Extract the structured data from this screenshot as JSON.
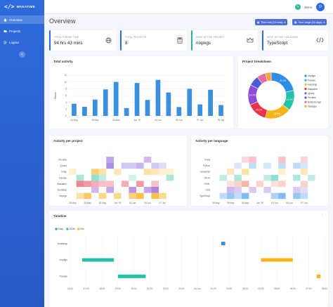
{
  "app": {
    "name": "WAKATIME",
    "logo_glyph": "</>"
  },
  "sidebar": {
    "items": [
      {
        "label": "Overview",
        "icon": "home-icon",
        "active": true
      },
      {
        "label": "Projects",
        "icon": "folder-icon",
        "active": false
      },
      {
        "label": "Logout",
        "icon": "logout-icon",
        "active": false
      }
    ],
    "collapse_glyph": "‹"
  },
  "topbar": {
    "username": "demo",
    "avatar_initial": "D",
    "edit_icon": "pencil-icon"
  },
  "page": {
    "title": "Overview"
  },
  "filters": {
    "time_limit": "Time limit (15 mins)",
    "time_range": "Time range (15 days)"
  },
  "stats": [
    {
      "label": "TOTAL CODING TIME",
      "value": "94 hrs 43 mins",
      "icon": "globe-icon",
      "color": "#2f6bdc"
    },
    {
      "label": "TOTAL PROJECTS",
      "value": "8",
      "icon": "calculator-icon",
      "color": "#2f6bdc"
    },
    {
      "label": "MOST ACTIVE PROJECT",
      "value": "nixpkgs",
      "icon": "crown-icon",
      "color": "#27b49a"
    },
    {
      "label": "MOST ACTIVE LANGUAGE",
      "value": "TypeScript",
      "icon": "code-icon",
      "color": "#2f6bdc"
    }
  ],
  "total_activity": {
    "title": "Total activity",
    "ylabel": "Hours",
    "chart_data": {
      "type": "bar",
      "title": "Total activity",
      "ylabel": "Hours",
      "ylim": [
        0,
        12
      ],
      "yticks": [
        "0",
        "2",
        "4",
        "6",
        "8",
        "10",
        "12"
      ],
      "categories": [
        "26 May",
        "27 May",
        "28 May",
        "29 May",
        "30 May",
        "31 May",
        "Jun '20",
        "02 Jun",
        "03 Jun",
        "04 Jun",
        "05 Jun",
        "06 Jun",
        "07 Jun",
        "08 Jun",
        "09 Jun"
      ],
      "xtick_labels": [
        "26 May",
        "28 May",
        "30 May",
        "Jun '20",
        "03 Jun",
        "05 Jun",
        "07 Jun",
        "09 Jun"
      ],
      "values": [
        3.6,
        2.7,
        4.8,
        7.8,
        10.0,
        2.3,
        9.7,
        4.7,
        10.6,
        6.9,
        2.6,
        8.0,
        3.4,
        7.7,
        3.2
      ],
      "color": "#3a8fe0"
    }
  },
  "project_breakdown": {
    "title": "Project breakdown",
    "chart_data": {
      "type": "pie",
      "title": "Project breakdown",
      "labels": [
        "nixpkgs",
        "Pandas",
        "bootstrap",
        "Wakatime",
        "jQuery",
        "Pie-tabs",
        "Butterstorage",
        "mialappy"
      ],
      "values": [
        21.4,
        14.3,
        18.5,
        14.1,
        14.3,
        7.1,
        6.2,
        4.1
      ],
      "value_labels": [
        "21.4%",
        "14.3%",
        "18.5%",
        "14.1%",
        "14.3%",
        "",
        "",
        ""
      ],
      "colors": [
        "#2f8de4",
        "#23c3a8",
        "#f4b41a",
        "#e8334a",
        "#8c4bd6",
        "#4c5bd8",
        "#e86ca0",
        "#f7a43a"
      ],
      "legend_position": "right"
    }
  },
  "activity_project": {
    "title": "Activity per project",
    "chart_data": {
      "type": "heatmap",
      "title": "Activity per project",
      "rows": [
        "Pie-tabs",
        "jQuery",
        "mialp",
        "Pandas",
        "Wakatime",
        "bootstrap",
        "nixpkgs"
      ],
      "columns": [
        "26 May",
        "27 May",
        "28 May",
        "29 May",
        "30 May",
        "31 May",
        "Jun '20",
        "02 Jun",
        "03 Jun",
        "04 Jun",
        "05 Jun",
        "06 Jun",
        "07 Jun",
        "08 Jun",
        "09 Jun"
      ],
      "xtick_labels": [
        "26 May",
        "28 May",
        "30 May",
        "Jun '20",
        "03 Jun",
        "05 Jun",
        "07 Jun"
      ],
      "values": [
        [
          0,
          0,
          0,
          0,
          0,
          0.5,
          0,
          0,
          0,
          0,
          0.4,
          0,
          0,
          0,
          0
        ],
        [
          0,
          0,
          0,
          0,
          0,
          0.6,
          0,
          0.3,
          0.3,
          0.4,
          0,
          0.3,
          0.2,
          0,
          0
        ],
        [
          0.2,
          0,
          0,
          0.6,
          0.4,
          0,
          0.3,
          0,
          0,
          0,
          0.4,
          0.3,
          0.2,
          0.2,
          0
        ],
        [
          0,
          0.4,
          0,
          0.5,
          0.3,
          0,
          0,
          0,
          0.2,
          0,
          0,
          0,
          0,
          0.4,
          0
        ],
        [
          0,
          0.6,
          0.5,
          0.4,
          0.3,
          0.3,
          0,
          0.4,
          0,
          0.5,
          0,
          0.3,
          0,
          0,
          0
        ],
        [
          0,
          0,
          0,
          0.4,
          0,
          0.5,
          0,
          0,
          0.6,
          0,
          0.5,
          0.7,
          0,
          0,
          0
        ],
        [
          0,
          0.4,
          0.7,
          0,
          0.5,
          0,
          0.5,
          0,
          0.6,
          0.8,
          0,
          0.8,
          0.5,
          0,
          0
        ]
      ],
      "row_colors": [
        "#8c4bd6",
        "#6a4bd6",
        "#f4b41a",
        "#23c3a8",
        "#e8334a",
        "#8c4bd6",
        "#f4b41a"
      ]
    }
  },
  "activity_language": {
    "title": "Activity per language",
    "chart_data": {
      "type": "heatmap",
      "title": "Activity per language",
      "rows": [
        "Ruby",
        "Python",
        "Javascript",
        "JSON",
        "HTML",
        "CSS",
        "TypeScript"
      ],
      "columns": [
        "26 May",
        "27 May",
        "28 May",
        "29 May",
        "30 May",
        "31 May",
        "Jun '20",
        "02 Jun",
        "03 Jun",
        "04 Jun",
        "05 Jun",
        "06 Jun",
        "07 Jun",
        "08 Jun",
        "09 Jun"
      ],
      "xtick_labels": [
        "26 May",
        "28 May",
        "30 May",
        "Jun '20",
        "03 Jun",
        "05 Jun",
        "07 Jun"
      ],
      "values": [
        [
          0,
          0,
          0,
          0,
          0.2,
          0.3,
          0,
          0,
          0,
          0.3,
          0,
          0,
          0.2,
          0,
          0
        ],
        [
          0,
          0,
          0,
          0.2,
          0,
          0.3,
          0,
          0.2,
          0,
          0.3,
          0,
          0.3,
          0.2,
          0,
          0
        ],
        [
          0,
          0,
          0.3,
          0,
          0.4,
          0,
          0,
          0,
          0,
          0.2,
          0,
          0,
          0.3,
          0,
          0
        ],
        [
          0,
          0.3,
          0,
          0.4,
          0,
          0,
          0,
          0.3,
          0.5,
          0,
          0,
          0.4,
          0,
          0.3,
          0
        ],
        [
          0,
          0,
          0.2,
          0.3,
          0.5,
          0,
          0.3,
          0,
          0.2,
          0.3,
          0,
          0,
          0.3,
          0,
          0
        ],
        [
          0,
          0,
          0.4,
          0.3,
          0,
          0.3,
          0,
          0.3,
          0,
          0,
          0,
          0.3,
          0.2,
          0,
          0
        ],
        [
          0,
          0.3,
          0.5,
          0.3,
          0.6,
          0,
          0,
          0,
          0.4,
          0.6,
          0,
          0.5,
          0.3,
          0,
          0
        ]
      ],
      "row_colors": [
        "#e8334a",
        "#2f8de4",
        "#f4b41a",
        "#23c3a8",
        "#e86c4b",
        "#8c4bd6",
        "#2f8de4"
      ]
    }
  },
  "timeline": {
    "title": "Timeline",
    "menu_glyph": "⋮",
    "legend": [
      {
        "name": "Ruby",
        "color": "#2f8de4"
      },
      {
        "name": "JSON",
        "color": "#23c3a8"
      },
      {
        "name": "Elm",
        "color": "#f4b41a"
      }
    ],
    "rows": [
      "bootstrap",
      "nixpkgs",
      "Pandas"
    ],
    "xtick_labels": [
      "16:00",
      "17:00",
      "18:00",
      "19:00",
      "20:00",
      "21:00",
      "22:00",
      "23:00",
      "04 Jun",
      "01:00",
      "02:00",
      "03:00",
      "04:00",
      "05:00",
      "06:00",
      "07:00",
      "08:00"
    ],
    "chart_data": {
      "type": "timeline",
      "x_range": [
        "16:00",
        "08:00 +1d"
      ],
      "segments": [
        {
          "row": "bootstrap",
          "start": "01:30",
          "end": "01:45",
          "language": "Ruby"
        },
        {
          "row": "nixpkgs",
          "start": "16:45",
          "end": "18:45",
          "language": "JSON"
        },
        {
          "row": "nixpkgs",
          "start": "04:00",
          "end": "06:00",
          "language": "Elm"
        },
        {
          "row": "Pandas",
          "start": "19:00",
          "end": "20:45",
          "language": "JSON"
        },
        {
          "row": "Pandas",
          "start": "07:30",
          "end": "07:45",
          "language": "Elm"
        }
      ]
    }
  }
}
